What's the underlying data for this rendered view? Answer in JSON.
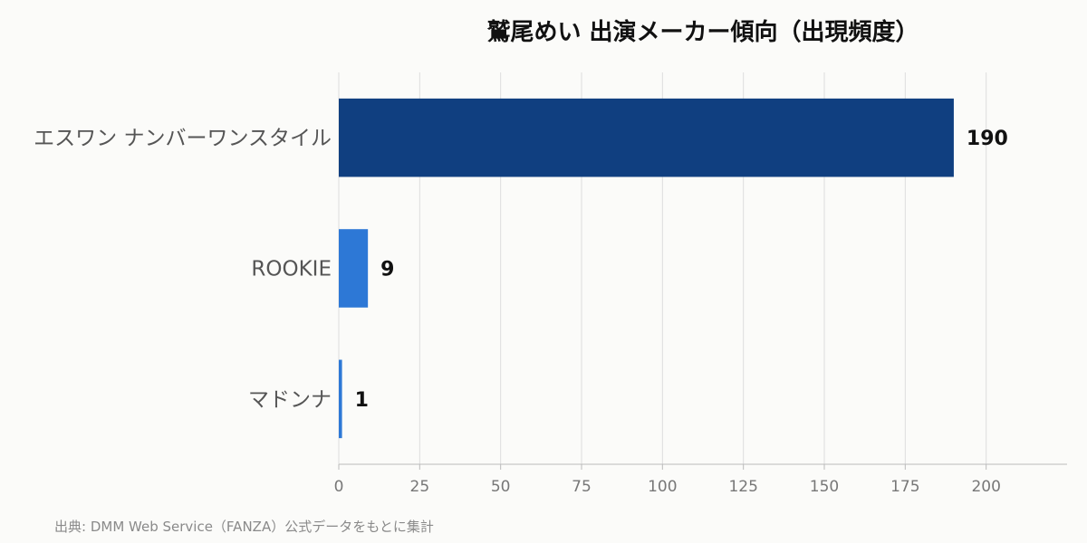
{
  "chart_data": {
    "type": "bar",
    "orientation": "horizontal",
    "title": "鷲尾めい 出演メーカー傾向（出現頻度）",
    "categories": [
      "エスワン ナンバーワンスタイル",
      "ROOKIE",
      "マドンナ"
    ],
    "values": [
      190,
      9,
      1
    ],
    "value_labels": [
      "190",
      "9",
      "1"
    ],
    "xlim": [
      0,
      225
    ],
    "xticks": [
      0,
      25,
      50,
      75,
      100,
      125,
      150,
      175,
      200
    ],
    "xtick_labels": [
      "0",
      "25",
      "50",
      "75",
      "100",
      "125",
      "150",
      "175",
      "200"
    ],
    "xlabel": "",
    "ylabel": "",
    "grid": "vertical",
    "legend": "none",
    "bar_colors": [
      "#103f80",
      "#2d78d6",
      "#2d78d6"
    ],
    "gridline_color": "#dddddd",
    "axis_color": "#bbbbbb"
  },
  "source_note": "出典: DMM Web Service（FANZA）公式データをもとに集計"
}
